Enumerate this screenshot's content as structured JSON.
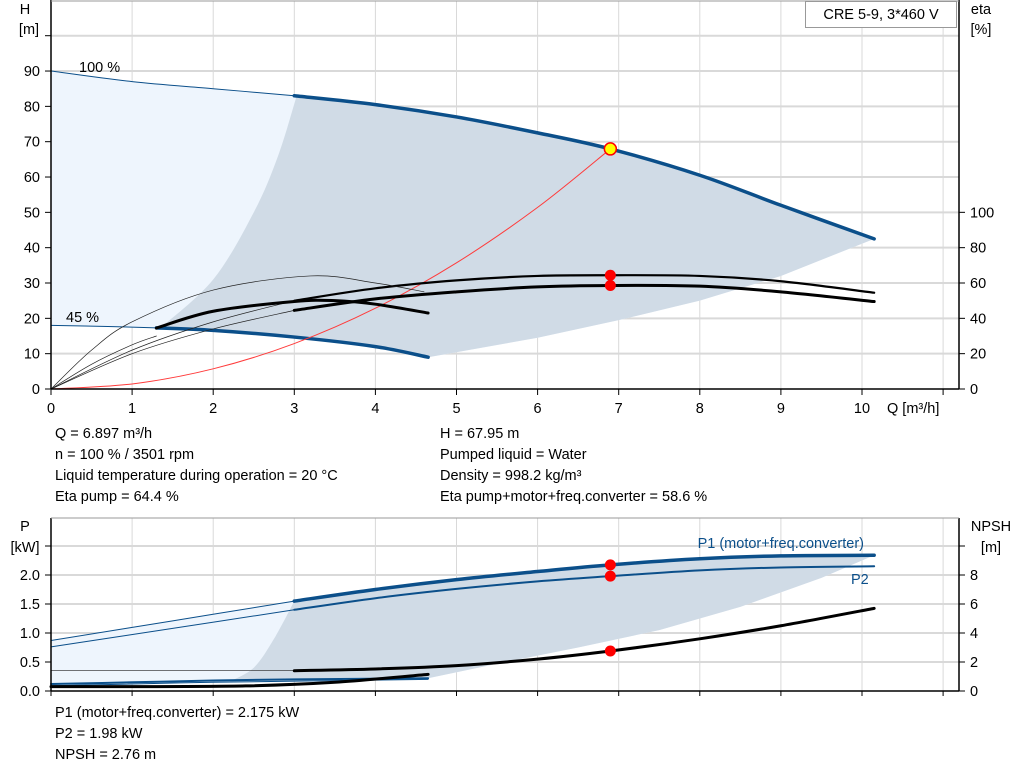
{
  "model_label": "CRE 5-9, 3*460 V",
  "colors": {
    "pump_curve": "#0b4f8a",
    "eff_curve": "#000000",
    "system_curve": "#ff3b3b",
    "region_light": "#eef5fd",
    "region_dark": "#d0dbe6",
    "grid": "#d9d9d9",
    "duty_point": "#ff0000",
    "op_point_fill": "#ffff00"
  },
  "top_info": {
    "left": [
      "Q = 6.897 m³/h",
      "n = 100 % / 3501 rpm",
      "Liquid temperature during operation = 20 °C",
      "Eta pump = 64.4 %"
    ],
    "right": [
      "H = 67.95 m",
      "Pumped liquid = Water",
      "Density = 998.2 kg/m³",
      "Eta pump+motor+freq.converter = 58.6 %"
    ]
  },
  "bottom_info": [
    "P1 (motor+freq.converter) = 2.175 kW",
    "P2 = 1.98 kW",
    "NPSH = 2.76 m"
  ],
  "chart_data": [
    {
      "type": "line",
      "x_axis": {
        "label": "Q [m³/h]",
        "range": [
          0,
          11
        ],
        "ticks": [
          "0",
          "1",
          "2",
          "3",
          "4",
          "5",
          "6",
          "7",
          "8",
          "9",
          "10"
        ]
      },
      "y_axis_left": {
        "label_top": "H",
        "label_unit": "[m]",
        "range": [
          0,
          100
        ],
        "ticks": [
          "0",
          "10",
          "20",
          "30",
          "40",
          "50",
          "60",
          "70",
          "80",
          "90"
        ]
      },
      "y_axis_right": {
        "label_top": "eta",
        "label_unit": "[%]",
        "range": [
          0,
          200
        ],
        "ticks": [
          "0",
          "20",
          "40",
          "60",
          "80",
          "100"
        ]
      },
      "grid": true,
      "annotations": [
        "100 %",
        "45 %"
      ],
      "series": [
        {
          "id": "h100_ext",
          "axis": "H",
          "style": "thin-blue",
          "points": [
            [
              0,
              90
            ],
            [
              1,
              87
            ],
            [
              2,
              85
            ],
            [
              3,
              83
            ]
          ]
        },
        {
          "id": "h100",
          "axis": "H",
          "style": "thick-blue",
          "points": [
            [
              3,
              83
            ],
            [
              4,
              80.5
            ],
            [
              5,
              77
            ],
            [
              6,
              72.5
            ],
            [
              6.897,
              67.95
            ],
            [
              8,
              60.5
            ],
            [
              9,
              52
            ],
            [
              10.15,
              42.5
            ]
          ]
        },
        {
          "id": "h45_ext",
          "axis": "H",
          "style": "thin-blue",
          "points": [
            [
              0,
              18
            ],
            [
              0.7,
              17.7
            ],
            [
              1.3,
              17.3
            ]
          ]
        },
        {
          "id": "h45",
          "axis": "H",
          "style": "thick-blue",
          "points": [
            [
              1.3,
              17.3
            ],
            [
              2,
              16.6
            ],
            [
              3,
              14.7
            ],
            [
              4,
              12
            ],
            [
              4.65,
              9
            ]
          ]
        },
        {
          "id": "system",
          "axis": "H",
          "style": "red",
          "points": [
            [
              0,
              0
            ],
            [
              1,
              1.43
            ],
            [
              2,
              5.71
            ],
            [
              3,
              12.86
            ],
            [
              4,
              22.86
            ],
            [
              5,
              35.71
            ],
            [
              6,
              51.4
            ],
            [
              6.897,
              67.95
            ]
          ]
        },
        {
          "id": "eta_pump_100_ext",
          "axis": "eta",
          "style": "thin-black",
          "points": [
            [
              0,
              0
            ],
            [
              1,
              22
            ],
            [
              2,
              38
            ],
            [
              3,
              50
            ]
          ]
        },
        {
          "id": "eta_pump_100",
          "axis": "eta",
          "style": "thick-black-2",
          "points": [
            [
              3,
              50
            ],
            [
              4,
              57
            ],
            [
              5,
              61.5
            ],
            [
              6,
              64
            ],
            [
              6.897,
              64.4
            ],
            [
              8,
              64
            ],
            [
              9,
              61
            ],
            [
              10.15,
              54.5
            ]
          ]
        },
        {
          "id": "eta_total_100_ext",
          "axis": "eta",
          "style": "thin-black",
          "points": [
            [
              0,
              0
            ],
            [
              1,
              20
            ],
            [
              2,
              34
            ],
            [
              3,
              44.5
            ]
          ]
        },
        {
          "id": "eta_total_100",
          "axis": "eta",
          "style": "thick-black",
          "points": [
            [
              3,
              44.5
            ],
            [
              4,
              51
            ],
            [
              5,
              55
            ],
            [
              6,
              57.8
            ],
            [
              6.897,
              58.6
            ],
            [
              8,
              58.2
            ],
            [
              9,
              55
            ],
            [
              10.15,
              49.5
            ]
          ]
        },
        {
          "id": "eta_pump_45_ext",
          "axis": "eta",
          "style": "thin-black",
          "points": [
            [
              0,
              0
            ],
            [
              0.5,
              22
            ],
            [
              1,
              38
            ],
            [
              2,
              56
            ],
            [
              3.2,
              64
            ],
            [
              4,
              60
            ],
            [
              4.6,
              55
            ]
          ]
        },
        {
          "id": "eta_pump_45",
          "axis": "eta",
          "style": "thick-black",
          "points": [
            [
              1.3,
              34.5
            ],
            [
              2,
              44
            ],
            [
              3,
              49.5
            ],
            [
              3.5,
              50
            ],
            [
              4,
              48
            ],
            [
              4.65,
              43
            ]
          ]
        },
        {
          "id": "eta_total_45_ext",
          "axis": "eta",
          "style": "thin-black",
          "points": [
            [
              0,
              0
            ],
            [
              0.5,
              14
            ],
            [
              1,
              25
            ],
            [
              1.3,
              30
            ]
          ]
        }
      ],
      "operating_point": {
        "Q": 6.897,
        "H": 67.95,
        "eta_pump": 64.4,
        "eta_total": 58.6
      }
    },
    {
      "type": "line",
      "x_axis": {
        "range": [
          0,
          11
        ]
      },
      "y_axis_left": {
        "label_top": "P",
        "label_unit": "[kW]",
        "range": [
          0,
          3
        ],
        "ticks": [
          "0.0",
          "0.5",
          "1.0",
          "1.5",
          "2.0"
        ]
      },
      "y_axis_right": {
        "label_top": "NPSH",
        "label_unit": "[m]",
        "range": [
          0,
          12
        ],
        "ticks": [
          "0",
          "2",
          "4",
          "6",
          "8"
        ]
      },
      "grid": true,
      "series": [
        {
          "id": "p1_ext",
          "name": "P1 (motor+freq.converter)",
          "axis": "P",
          "style": "thin-blue-double",
          "points": [
            [
              0,
              0.87
            ],
            [
              1.5,
              1.21
            ],
            [
              3,
              1.55
            ]
          ]
        },
        {
          "id": "p1",
          "name": "P1 (motor+freq.converter)",
          "axis": "P",
          "style": "thick-blue",
          "points": [
            [
              3,
              1.55
            ],
            [
              4,
              1.75
            ],
            [
              5,
              1.92
            ],
            [
              6,
              2.06
            ],
            [
              6.897,
              2.175
            ],
            [
              8,
              2.28
            ],
            [
              9,
              2.33
            ],
            [
              10.15,
              2.34
            ]
          ]
        },
        {
          "id": "p2_ext",
          "name": "P2",
          "axis": "P",
          "style": "thin-blue-double",
          "points": [
            [
              0,
              0.76
            ],
            [
              1.5,
              1.08
            ],
            [
              3,
              1.4
            ]
          ]
        },
        {
          "id": "p2",
          "name": "P2",
          "axis": "P",
          "style": "mid-blue",
          "points": [
            [
              3,
              1.4
            ],
            [
              4,
              1.6
            ],
            [
              5,
              1.76
            ],
            [
              6,
              1.89
            ],
            [
              6.897,
              1.98
            ],
            [
              8,
              2.08
            ],
            [
              9,
              2.13
            ],
            [
              10.15,
              2.15
            ]
          ]
        },
        {
          "id": "npsh_ext",
          "axis": "NPSH",
          "style": "thin-black",
          "points": [
            [
              0,
              1.4
            ],
            [
              3,
              1.4
            ]
          ]
        },
        {
          "id": "npsh",
          "axis": "NPSH",
          "style": "thick-black",
          "points": [
            [
              3,
              1.4
            ],
            [
              4,
              1.52
            ],
            [
              5,
              1.75
            ],
            [
              6,
              2.2
            ],
            [
              6.897,
              2.76
            ],
            [
              8,
              3.6
            ],
            [
              9,
              4.5
            ],
            [
              10.15,
              5.7
            ]
          ]
        },
        {
          "id": "p1_45",
          "axis": "P",
          "style": "mid-blue",
          "points": [
            [
              0,
              0.12
            ],
            [
              1,
              0.15
            ],
            [
              2,
              0.18
            ],
            [
              3,
              0.2
            ],
            [
              4.65,
              0.22
            ]
          ]
        },
        {
          "id": "p2_45",
          "axis": "P",
          "style": "thin-blue",
          "points": [
            [
              0,
              0.09
            ],
            [
              2,
              0.15
            ],
            [
              4.65,
              0.2
            ]
          ]
        },
        {
          "id": "npsh_45",
          "axis": "NPSH",
          "style": "thick-black",
          "points": [
            [
              0,
              0.3
            ],
            [
              1,
              0.3
            ],
            [
              2.4,
              0.35
            ],
            [
              3.5,
              0.6
            ],
            [
              4.65,
              1.15
            ]
          ]
        }
      ],
      "operating_point": {
        "Q": 6.897,
        "P1": 2.175,
        "P2": 1.98,
        "NPSH": 2.76
      }
    }
  ]
}
